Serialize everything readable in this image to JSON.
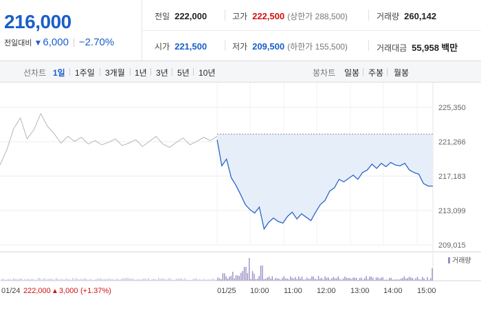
{
  "price": {
    "current": "216,000",
    "change_label": "전일대비",
    "change": "6,000",
    "change_pct": "−2.70%"
  },
  "stats": {
    "prev_close": {
      "label": "전일",
      "value": "222,000"
    },
    "high": {
      "label": "고가",
      "value": "222,500",
      "sub": "(상한가 288,500)"
    },
    "volume": {
      "label": "거래량",
      "value": "260,142"
    },
    "open": {
      "label": "시가",
      "value": "221,500"
    },
    "low": {
      "label": "저가",
      "value": "209,500",
      "sub": "(하한가 155,500)"
    },
    "amount": {
      "label": "거래대금",
      "value": "55,958",
      "unit": "백만"
    }
  },
  "line_tabs": {
    "label": "선차트",
    "items": [
      "1일",
      "1주일",
      "3개월",
      "1년",
      "3년",
      "5년",
      "10년"
    ],
    "active": 0
  },
  "candle_tabs": {
    "label": "봉차트",
    "items": [
      "일봉",
      "주봉",
      "월봉"
    ]
  },
  "colors": {
    "up": "#d20f0f",
    "down": "#1a5fc8",
    "line": "#2a64c8",
    "fill": "#e6eefa",
    "volume": "#9b8ec4"
  },
  "chart_data": {
    "type": "line",
    "y_ticks": [
      "225,350",
      "221,266",
      "217,183",
      "213,099",
      "209,015"
    ],
    "ylim": [
      209015,
      225350
    ],
    "reference_price": 221266,
    "x_ticks": [
      "01/25",
      "10:00",
      "11:00",
      "12:00",
      "13:00",
      "14:00",
      "15:00"
    ],
    "prev_day": {
      "date": "01/24",
      "close": "222,000",
      "change": "3,000",
      "change_pct": "(+1.37%)"
    },
    "legend": "거래량",
    "prev_series": [
      218500,
      220300,
      222800,
      224100,
      221600,
      222700,
      224600,
      223100,
      222200,
      221100,
      221900,
      221300,
      221800,
      221000,
      221400,
      220900,
      221200,
      221600,
      220800,
      221100,
      221500,
      220700,
      221300,
      221900,
      221000,
      220600,
      221200,
      221700,
      220900,
      221300,
      221800,
      221400,
      221900
    ],
    "today_series": [
      221500,
      218400,
      219200,
      217000,
      216100,
      215000,
      213800,
      213200,
      212800,
      213500,
      210900,
      211700,
      212200,
      211800,
      211600,
      212400,
      212900,
      212100,
      212700,
      212300,
      211900,
      212900,
      213800,
      214300,
      215400,
      215800,
      216800,
      216500,
      216900,
      217300,
      216800,
      217600,
      217900,
      218600,
      218100,
      218700,
      218300,
      218800,
      218500,
      218400,
      218700,
      217900,
      217600,
      217400,
      216300,
      216000,
      216000
    ]
  }
}
